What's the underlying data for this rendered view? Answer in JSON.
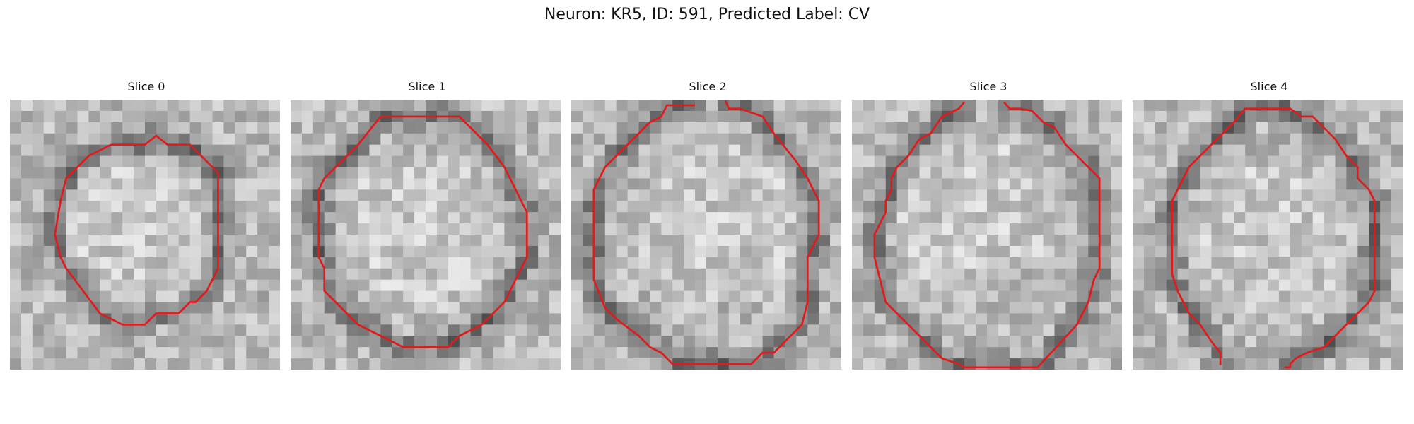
{
  "figure": {
    "title": "Neuron: KR5, ID: 591, Predicted Label: CV",
    "contour_color": "#e31a1c"
  },
  "panels": [
    {
      "title": "Slice 0",
      "grid": 24,
      "contour": [
        [
          9,
          4
        ],
        [
          12,
          4
        ],
        [
          13,
          3.2
        ],
        [
          14,
          4
        ],
        [
          16,
          4
        ],
        [
          18.5,
          6.5
        ],
        [
          18.5,
          15
        ],
        [
          17.5,
          17
        ],
        [
          16.5,
          18
        ],
        [
          16,
          18
        ],
        [
          15,
          19
        ],
        [
          13,
          19
        ],
        [
          12,
          20
        ],
        [
          10,
          20
        ],
        [
          8,
          19
        ],
        [
          6.5,
          17
        ],
        [
          5,
          15
        ],
        [
          4.5,
          14
        ],
        [
          4,
          12
        ],
        [
          4.5,
          9
        ],
        [
          5,
          7
        ],
        [
          7,
          5
        ],
        [
          9,
          4
        ]
      ]
    },
    {
      "title": "Slice 1",
      "grid": 24,
      "contour": [
        [
          8,
          1.5
        ],
        [
          15,
          1.5
        ],
        [
          17,
          3.5
        ],
        [
          17.5,
          4
        ],
        [
          19,
          6
        ],
        [
          20,
          8
        ],
        [
          21,
          10
        ],
        [
          21,
          14
        ],
        [
          20,
          16
        ],
        [
          19.5,
          17
        ],
        [
          19,
          18
        ],
        [
          17,
          20
        ],
        [
          15,
          21
        ],
        [
          14,
          22
        ],
        [
          10,
          22
        ],
        [
          8,
          21
        ],
        [
          6,
          20
        ],
        [
          4,
          18
        ],
        [
          3,
          17
        ],
        [
          3,
          15
        ],
        [
          2.5,
          14
        ],
        [
          2.5,
          8
        ],
        [
          3,
          7
        ],
        [
          4,
          6
        ],
        [
          6,
          4
        ],
        [
          8,
          1.5
        ]
      ]
    },
    {
      "title": "Slice 2",
      "grid": 24,
      "contour": [
        [
          11,
          0.5
        ],
        [
          8.5,
          0.5
        ],
        [
          8,
          1.5
        ],
        [
          7,
          2
        ],
        [
          5,
          4
        ],
        [
          3,
          6
        ],
        [
          2,
          8
        ],
        [
          2,
          16
        ],
        [
          3,
          18.5
        ],
        [
          4,
          19.5
        ],
        [
          6,
          21
        ],
        [
          7,
          22
        ],
        [
          8,
          22.5
        ],
        [
          9,
          23.5
        ],
        [
          16,
          23.5
        ],
        [
          17,
          22.5
        ],
        [
          18,
          22.5
        ],
        [
          20.5,
          20
        ],
        [
          21,
          18
        ],
        [
          21,
          14
        ],
        [
          21.5,
          13
        ],
        [
          22,
          12
        ],
        [
          22,
          9
        ],
        [
          21.5,
          8
        ],
        [
          21,
          7
        ],
        [
          20,
          5.5
        ],
        [
          18,
          3
        ],
        [
          17,
          1.5
        ],
        [
          15,
          0.8
        ],
        [
          14,
          0.8
        ],
        [
          13.7,
          0.1
        ]
      ]
    },
    {
      "title": "Slice 3",
      "grid": 24,
      "contour": [
        [
          10,
          0.2
        ],
        [
          9.5,
          0.8
        ],
        [
          8,
          1.5
        ],
        [
          7,
          3
        ],
        [
          6,
          3.5
        ],
        [
          5,
          5
        ],
        [
          4,
          6
        ],
        [
          3.5,
          7
        ],
        [
          3.5,
          8
        ],
        [
          3,
          9
        ],
        [
          3,
          10
        ],
        [
          2.5,
          11
        ],
        [
          2,
          12
        ],
        [
          2,
          14
        ],
        [
          2.5,
          16
        ],
        [
          3,
          18
        ],
        [
          4,
          19
        ],
        [
          5,
          20
        ],
        [
          6,
          21
        ],
        [
          7,
          22
        ],
        [
          8,
          23
        ],
        [
          9.5,
          23.5
        ],
        [
          10,
          23.8
        ],
        [
          16.5,
          23.8
        ],
        [
          20,
          20
        ],
        [
          21,
          18
        ],
        [
          21.5,
          16
        ],
        [
          22,
          15
        ],
        [
          22,
          7
        ],
        [
          21,
          6
        ],
        [
          20,
          5
        ],
        [
          19,
          4
        ],
        [
          18,
          2.5
        ],
        [
          17,
          2
        ],
        [
          16,
          1
        ],
        [
          15,
          0.8
        ],
        [
          14,
          0.8
        ],
        [
          13.5,
          0.2
        ]
      ]
    },
    {
      "title": "Slice 4",
      "grid": 24,
      "contour": [
        [
          7.8,
          23.6
        ],
        [
          7.8,
          22.5
        ],
        [
          7,
          21.5
        ],
        [
          6,
          20
        ],
        [
          5,
          19
        ],
        [
          4,
          17
        ],
        [
          3.5,
          15.5
        ],
        [
          3.5,
          9
        ],
        [
          4,
          8
        ],
        [
          4.5,
          7
        ],
        [
          5,
          6
        ],
        [
          6,
          5
        ],
        [
          8,
          3
        ],
        [
          9,
          2
        ],
        [
          10,
          0.8
        ],
        [
          14,
          0.8
        ],
        [
          15,
          1.5
        ],
        [
          16,
          1.5
        ],
        [
          17,
          2.5
        ],
        [
          18,
          3.5
        ],
        [
          19,
          5
        ],
        [
          20,
          6
        ],
        [
          20,
          7
        ],
        [
          21,
          8
        ],
        [
          21.5,
          9
        ],
        [
          21.5,
          17
        ],
        [
          21,
          18
        ],
        [
          20,
          19
        ],
        [
          19,
          20
        ],
        [
          18,
          21
        ],
        [
          17,
          22
        ],
        [
          15.5,
          22.5
        ],
        [
          14.5,
          23
        ],
        [
          14,
          23.5
        ],
        [
          14,
          23.8
        ],
        [
          13.5,
          23.8
        ]
      ]
    }
  ]
}
